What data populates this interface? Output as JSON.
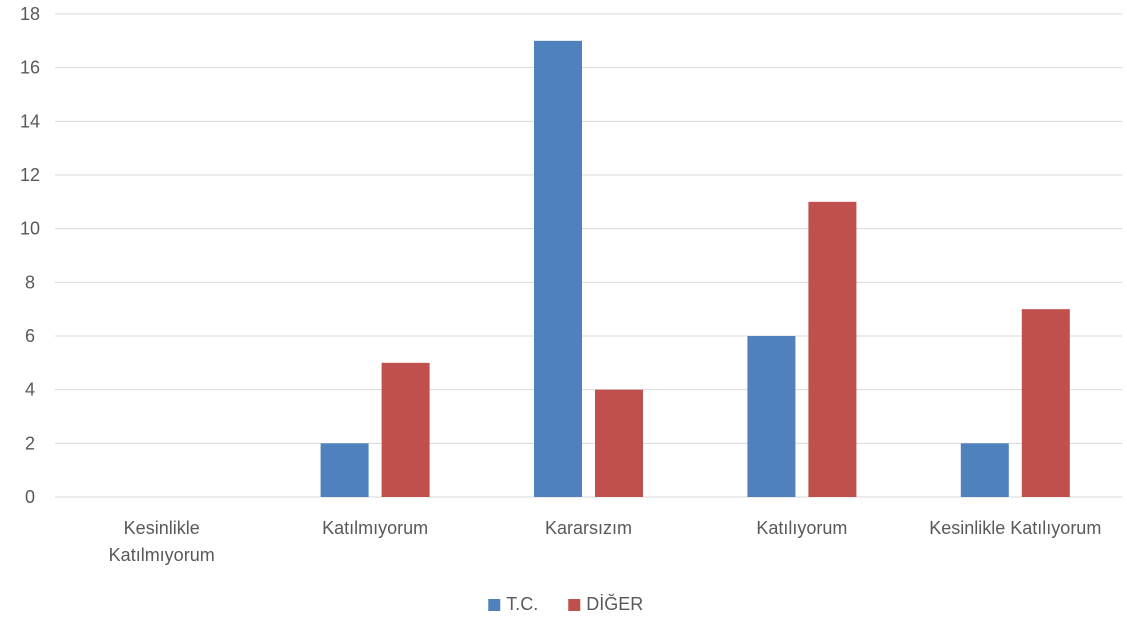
{
  "chart_data": {
    "type": "bar",
    "categories": [
      [
        "Kesinlikle",
        "Katılmıyorum"
      ],
      [
        "Katılmıyorum"
      ],
      [
        "Kararsızım"
      ],
      [
        "Katılıyorum"
      ],
      [
        "Kesinlikle Katılıyorum"
      ]
    ],
    "series": [
      {
        "name": "T.C.",
        "color": "#4f81bd",
        "values": [
          0,
          2,
          17,
          6,
          2
        ]
      },
      {
        "name": "DİĞER",
        "color": "#c0504d",
        "values": [
          0,
          5,
          4,
          11,
          7
        ]
      }
    ],
    "ylim": [
      0,
      18
    ],
    "yticks": [
      0,
      2,
      4,
      6,
      8,
      10,
      12,
      14,
      16,
      18
    ],
    "grid": true,
    "legend": "bottom",
    "title": "",
    "xlabel": "",
    "ylabel": ""
  }
}
